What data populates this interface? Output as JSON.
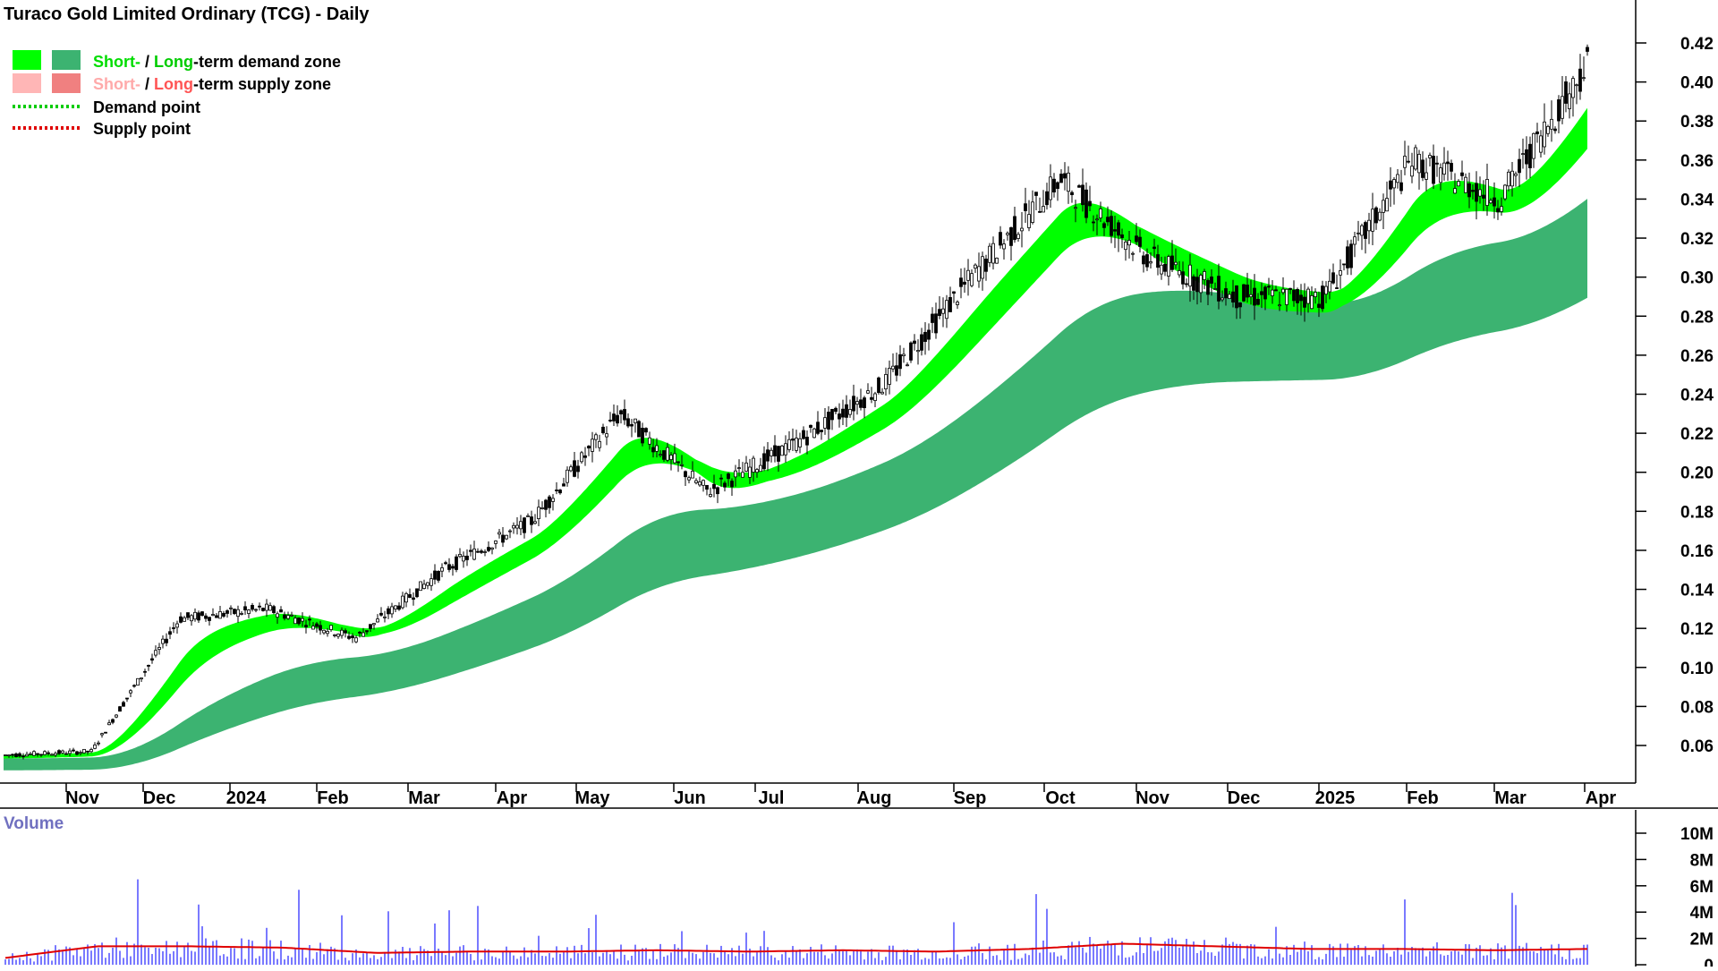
{
  "chart_data": {
    "type": "candlestick",
    "title": "Turaco Gold Limited Ordinary (TCG) - Daily",
    "legend": [
      {
        "short": "Short-",
        "sep": " / ",
        "long": "Long",
        "rest": "-term demand zone",
        "short_color": "#00ff00",
        "long_color": "#3cb371",
        "text_color": "#00dd00"
      },
      {
        "short": "Short-",
        "sep": " / ",
        "long": "Long",
        "rest": "-term supply zone",
        "short_color": "#ffb6b6",
        "long_color": "#f08080",
        "text_color": "#ffaaaa"
      },
      {
        "label": "Demand point",
        "color": "#00cc00"
      },
      {
        "label": "Supply point",
        "color": "#e00000"
      }
    ],
    "y_axis": {
      "range": [
        0.04,
        0.43
      ],
      "ticks": [
        "0.06",
        "0.08",
        "0.10",
        "0.12",
        "0.14",
        "0.16",
        "0.18",
        "0.20",
        "0.22",
        "0.24",
        "0.26",
        "0.28",
        "0.30",
        "0.32",
        "0.34",
        "0.36",
        "0.38",
        "0.40",
        "0.42"
      ]
    },
    "x_axis": {
      "months": [
        "Nov",
        "Dec",
        "2024",
        "Feb",
        "Mar",
        "Apr",
        "May",
        "Jun",
        "Jul",
        "Aug",
        "Sep",
        "Oct",
        "Nov",
        "Dec",
        "2025",
        "Feb",
        "Mar",
        "Apr"
      ]
    },
    "price_series_approx": [
      {
        "month": "Oct 2023",
        "close": 0.055
      },
      {
        "month": "Nov",
        "close": 0.057
      },
      {
        "month": "Dec",
        "close": 0.125
      },
      {
        "month": "2024",
        "close": 0.13
      },
      {
        "month": "Feb",
        "close": 0.115
      },
      {
        "month": "Mar",
        "close": 0.15
      },
      {
        "month": "Apr",
        "close": 0.175
      },
      {
        "month": "May",
        "close": 0.23
      },
      {
        "month": "Jun",
        "close": 0.19
      },
      {
        "month": "Jul",
        "close": 0.215
      },
      {
        "month": "Aug",
        "close": 0.245
      },
      {
        "month": "Sep",
        "close": 0.3
      },
      {
        "month": "Oct",
        "close": 0.35
      },
      {
        "month": "Nov",
        "close": 0.31
      },
      {
        "month": "Dec",
        "close": 0.29
      },
      {
        "month": "2025",
        "close": 0.29
      },
      {
        "month": "Feb",
        "close": 0.36
      },
      {
        "month": "Mar",
        "close": 0.34
      },
      {
        "month": "Apr",
        "close": 0.41
      }
    ],
    "volume": {
      "label": "Volume",
      "ticks": [
        "10M",
        "8M",
        "6M",
        "4M",
        "2M",
        "0"
      ],
      "range": [
        0,
        11
      ],
      "moving_average_approx": [
        0.5,
        1.4,
        1.4,
        1.3,
        0.9,
        1.0,
        1.0,
        1.1,
        1.0,
        1.1,
        1.0,
        1.2,
        1.6,
        1.4,
        1.2,
        1.2,
        1.1,
        1.2
      ]
    },
    "colors": {
      "candle": "#000000",
      "short_demand": "#00ff00",
      "long_demand": "#3cb371",
      "supply_zone": "#ff6a2a",
      "short_supply": "#ffb6c1",
      "volume_bar": "#4040ff",
      "volume_ma": "#e00000"
    }
  }
}
